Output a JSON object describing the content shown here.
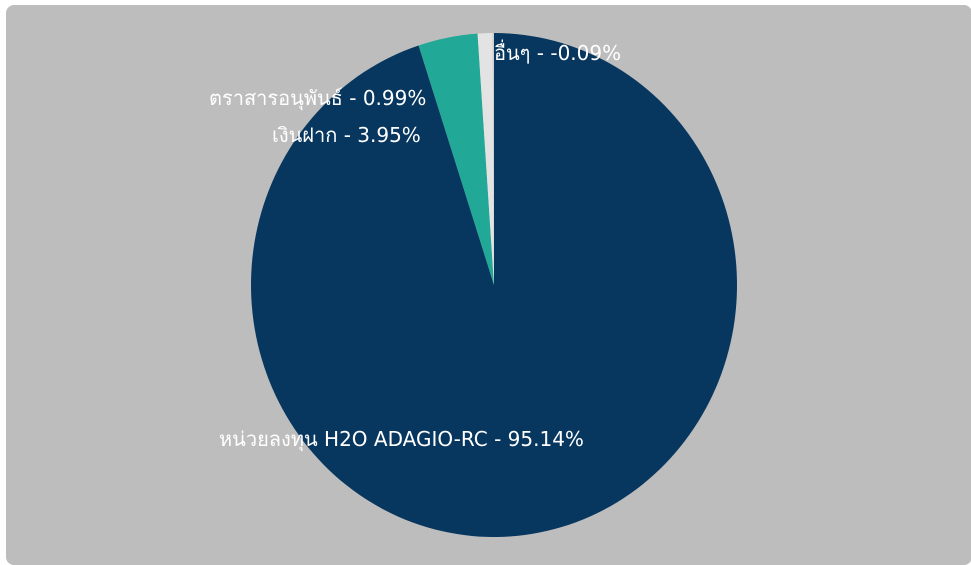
{
  "chart_data": {
    "type": "pie",
    "title": "",
    "slices": [
      {
        "label": "หน่วยลงทุน H2O ADAGIO-RC - 95.14%",
        "name": "หน่วยลงทุน H2O ADAGIO-RC",
        "value": 95.14,
        "color": "#07365f"
      },
      {
        "label": "เงินฝาก - 3.95%",
        "name": "เงินฝาก",
        "value": 3.95,
        "color": "#22a897"
      },
      {
        "label": "ตราสารอนุพันธ์ - 0.99%",
        "name": "ตราสารอนุพันธ์",
        "value": 0.99,
        "color": "#e3e3e3"
      },
      {
        "label": "อื่นๆ - -0.09%",
        "name": "อื่นๆ",
        "value": -0.09,
        "color": "#cfcfcf"
      }
    ],
    "legend": "none",
    "colors": {
      "background": "#bdbdbd",
      "label_text": "#ffffff"
    }
  }
}
